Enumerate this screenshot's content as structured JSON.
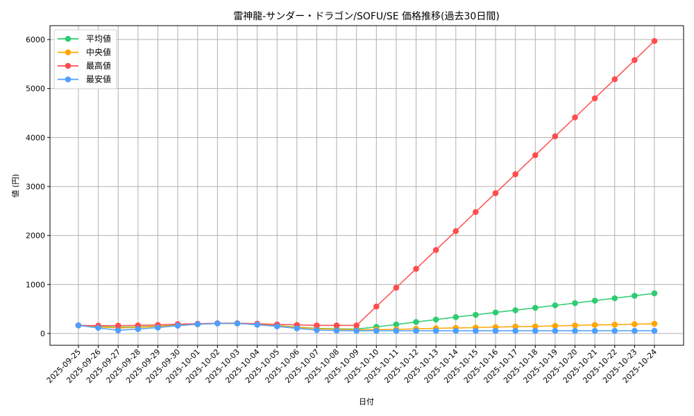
{
  "chart_data": {
    "type": "line",
    "title": "雷神龍-サンダー・ドラゴン/SOFU/SE 価格推移(過去30日間)",
    "xlabel": "日付",
    "ylabel": "値 (円)",
    "ylim": [
      -250,
      6260
    ],
    "yticks": [
      0,
      1000,
      2000,
      3000,
      4000,
      5000,
      6000
    ],
    "grid": true,
    "legend_position": "upper left",
    "categories": [
      "2025-09-25",
      "2025-09-26",
      "2025-09-27",
      "2025-09-28",
      "2025-09-29",
      "2025-09-30",
      "2025-10-01",
      "2025-10-02",
      "2025-10-03",
      "2025-10-04",
      "2025-10-05",
      "2025-10-06",
      "2025-10-07",
      "2025-10-08",
      "2025-10-09",
      "2025-10-10",
      "2025-10-11",
      "2025-10-12",
      "2025-10-13",
      "2025-10-14",
      "2025-10-15",
      "2025-10-16",
      "2025-10-17",
      "2025-10-18",
      "2025-10-19",
      "2025-10-20",
      "2025-10-21",
      "2025-10-22",
      "2025-10-23",
      "2025-10-24"
    ],
    "series": [
      {
        "name": "平均値",
        "color": "#2ecc71",
        "values": [
          165,
          140,
          125,
          135,
          150,
          170,
          190,
          205,
          205,
          185,
          160,
          130,
          105,
          95,
          90,
          135,
          185,
          235,
          285,
          335,
          380,
          430,
          475,
          525,
          575,
          620,
          670,
          720,
          770,
          820
        ]
      },
      {
        "name": "中央値",
        "color": "#ffa500",
        "values": [
          165,
          135,
          115,
          125,
          145,
          165,
          190,
          205,
          205,
          185,
          155,
          125,
          100,
          85,
          75,
          80,
          85,
          95,
          105,
          115,
          120,
          130,
          140,
          145,
          155,
          165,
          175,
          180,
          190,
          200
        ]
      },
      {
        "name": "最高値",
        "color": "#ff4d4d",
        "values": [
          165,
          160,
          160,
          165,
          175,
          190,
          200,
          210,
          210,
          200,
          185,
          175,
          165,
          165,
          165,
          550,
          935,
          1320,
          1705,
          2090,
          2480,
          2865,
          3250,
          3640,
          4025,
          4410,
          4800,
          5190,
          5580,
          5970
        ]
      },
      {
        "name": "最安値",
        "color": "#4d9fff",
        "values": [
          165,
          115,
          65,
          90,
          120,
          160,
          190,
          205,
          205,
          180,
          145,
          105,
          70,
          60,
          55,
          55,
          55,
          55,
          55,
          55,
          55,
          55,
          55,
          55,
          55,
          55,
          55,
          55,
          55,
          55
        ]
      }
    ]
  }
}
